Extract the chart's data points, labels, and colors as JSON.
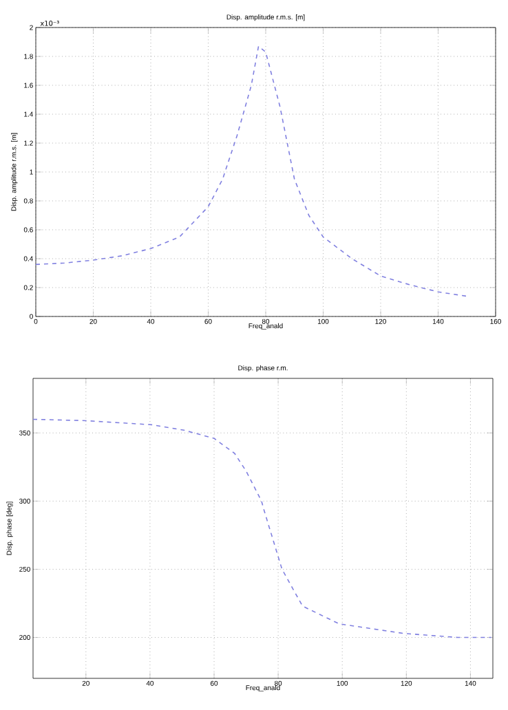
{
  "chart_data": [
    {
      "type": "line",
      "title": "Disp. amplitude r.m.s. [m]",
      "xlabel": "Freq_anald",
      "ylabel": "Disp. amplitude r.m.s. [m]",
      "annotations": [
        "x10⁻³"
      ],
      "xlim": [
        0,
        160
      ],
      "ylim": [
        0,
        2
      ],
      "xticks": [
        0,
        20,
        40,
        60,
        80,
        100,
        120,
        140,
        160
      ],
      "yticks": [
        0,
        0.2,
        0.4,
        0.6,
        0.8,
        1,
        1.2,
        1.4,
        1.6,
        1.8,
        2
      ],
      "grid": true,
      "line_style": "dashed",
      "series": [
        {
          "color": "#8080e0",
          "x": [
            0,
            10,
            20,
            30,
            40,
            50,
            60,
            65,
            70,
            75,
            77.5,
            80,
            85,
            90,
            95,
            100,
            110,
            120,
            130,
            140,
            150
          ],
          "values": [
            0.36,
            0.37,
            0.39,
            0.42,
            0.47,
            0.55,
            0.76,
            0.95,
            1.25,
            1.6,
            1.87,
            1.83,
            1.45,
            0.95,
            0.7,
            0.55,
            0.4,
            0.28,
            0.22,
            0.17,
            0.14
          ]
        }
      ]
    },
    {
      "type": "line",
      "title": "Disp. phase r.m.",
      "xlabel": "Freq_anald",
      "ylabel": "Disp. phase [deg]",
      "xlim": [
        3.5,
        147
      ],
      "ylim": [
        170,
        390
      ],
      "xticks": [
        20,
        40,
        60,
        80,
        100,
        120,
        140
      ],
      "yticks": [
        200,
        250,
        300,
        350
      ],
      "grid": true,
      "line_style": "dashed",
      "series": [
        {
          "color": "#8080e0",
          "x": [
            3.5,
            20,
            40.5,
            50.6,
            60,
            66.4,
            70,
            74.8,
            75.5,
            81.2,
            87.6,
            99,
            119,
            136,
            146.5
          ],
          "values": [
            360,
            359,
            356,
            352,
            346,
            335,
            322,
            300,
            294,
            250,
            223,
            210,
            203,
            200,
            200
          ]
        }
      ]
    }
  ]
}
